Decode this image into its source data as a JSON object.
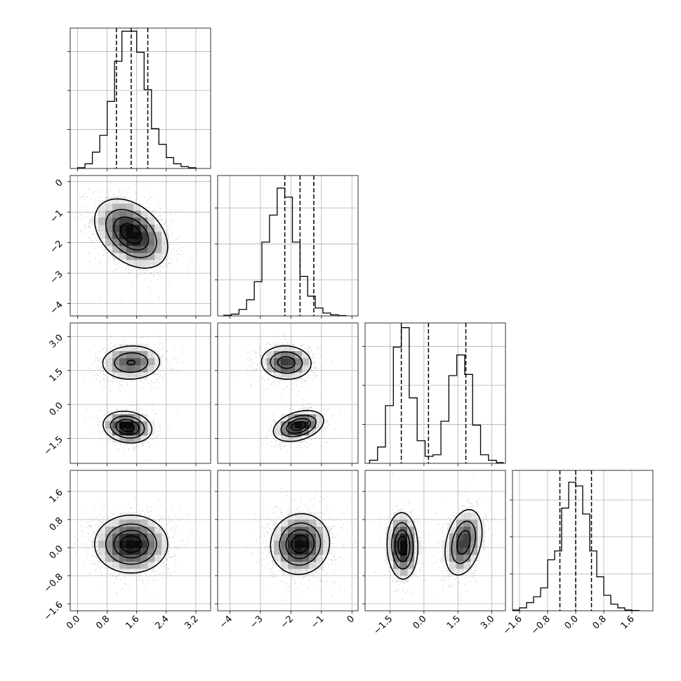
{
  "chart_data": {
    "type": "corner",
    "title": "",
    "n_params": 4,
    "grid": true,
    "params": [
      {
        "xlim": [
          -0.2,
          3.6
        ],
        "ylim": [
          -4.4,
          0.2
        ],
        "ticks": [
          0.0,
          0.8,
          1.6,
          2.4,
          3.2
        ],
        "tick_labels": [
          "0.0",
          "0.8",
          "1.6",
          "2.4",
          "3.2"
        ],
        "ytick_labels": [
          "0",
          "−1",
          "−2",
          "−3",
          "−4"
        ],
        "ylabel_ticks": [
          0,
          -1,
          -2,
          -3,
          -4
        ],
        "quantiles": [
          1.05,
          1.45,
          1.9
        ],
        "hist_ymax": 3.6,
        "hist": {
          "edges": [
            0.0,
            0.2,
            0.4,
            0.6,
            0.8,
            1.0,
            1.2,
            1.4,
            1.6,
            1.8,
            2.0,
            2.2,
            2.4,
            2.6,
            2.8,
            3.0,
            3.2
          ],
          "counts": [
            0.02,
            0.12,
            0.42,
            0.85,
            1.72,
            2.75,
            3.52,
            3.52,
            2.98,
            2.02,
            1.02,
            0.62,
            0.28,
            0.12,
            0.05,
            0.02
          ]
        }
      },
      {
        "xlim": [
          -4.4,
          0.2
        ],
        "ylim": [
          -4.4,
          0.2
        ],
        "ticks": [
          -4,
          -3,
          -2,
          -1,
          0
        ],
        "tick_labels": [
          "−4",
          "−3",
          "−2",
          "−1",
          "0"
        ],
        "quantiles": [
          -2.2,
          -1.7,
          -1.25
        ],
        "hist_ymax": 3.9,
        "hist": {
          "edges": [
            -4.2,
            -3.95,
            -3.7,
            -3.45,
            -3.2,
            -2.95,
            -2.7,
            -2.45,
            -2.2,
            -1.95,
            -1.7,
            -1.45,
            -1.2,
            -0.95,
            -0.7,
            -0.45,
            -0.2
          ],
          "counts": [
            0.02,
            0.05,
            0.18,
            0.45,
            0.95,
            2.05,
            2.8,
            3.55,
            3.3,
            2.05,
            1.1,
            0.55,
            0.22,
            0.08,
            0.03,
            0.01
          ]
        }
      },
      {
        "xlim": [
          -2.6,
          3.6
        ],
        "ylim": [
          -2.6,
          3.6
        ],
        "ticks": [
          -1.5,
          0.0,
          1.5,
          3.0
        ],
        "tick_labels": [
          "−1.5",
          "0.0",
          "1.5",
          "3.0"
        ],
        "quantiles": [
          -1.0,
          0.2,
          1.85
        ],
        "hist_ymax": 3.6,
        "hist": {
          "edges": [
            -2.4,
            -2.05,
            -1.7,
            -1.35,
            -1.0,
            -0.65,
            -0.3,
            0.05,
            0.4,
            0.75,
            1.1,
            1.45,
            1.8,
            2.15,
            2.5,
            2.85,
            3.2,
            3.5
          ],
          "counts": [
            0.08,
            0.42,
            1.48,
            2.98,
            3.48,
            1.68,
            0.58,
            0.18,
            0.22,
            1.08,
            2.25,
            2.78,
            2.28,
            0.98,
            0.22,
            0.08,
            0.02
          ]
        }
      },
      {
        "xlim": [
          -1.8,
          2.2
        ],
        "ylim": [
          -1.8,
          2.2
        ],
        "ticks": [
          -1.6,
          -0.8,
          0.0,
          0.8,
          1.6
        ],
        "tick_labels": [
          "−1.6",
          "−0.8",
          "0.0",
          "0.8",
          "1.6"
        ],
        "quantiles": [
          -0.45,
          0.0,
          0.45
        ],
        "hist_ymax": 3.8,
        "hist": {
          "edges": [
            -1.8,
            -1.6,
            -1.4,
            -1.2,
            -1.0,
            -0.8,
            -0.6,
            -0.4,
            -0.2,
            0.0,
            0.2,
            0.4,
            0.6,
            0.8,
            1.0,
            1.2,
            1.4,
            1.6,
            1.8
          ],
          "counts": [
            0.02,
            0.08,
            0.22,
            0.38,
            0.62,
            1.38,
            1.62,
            2.78,
            3.48,
            3.38,
            2.62,
            1.62,
            0.92,
            0.42,
            0.18,
            0.08,
            0.02,
            0.01
          ]
        }
      }
    ],
    "pairs": [
      {
        "row": 1,
        "col": 0,
        "clusters": [
          {
            "mx": 1.45,
            "my": -1.7,
            "sx": 0.48,
            "sy": 0.55,
            "rho": -0.38,
            "w": 1.0
          }
        ]
      },
      {
        "row": 2,
        "col": 0,
        "clusters": [
          {
            "mx": 1.45,
            "my": 1.85,
            "sx": 0.42,
            "sy": 0.4,
            "rho": 0.05,
            "w": 0.5
          },
          {
            "mx": 1.35,
            "my": -1.0,
            "sx": 0.32,
            "sy": 0.34,
            "rho": -0.15,
            "w": 0.5
          }
        ]
      },
      {
        "row": 2,
        "col": 1,
        "clusters": [
          {
            "mx": -2.15,
            "my": 1.85,
            "sx": 0.42,
            "sy": 0.38,
            "rho": -0.05,
            "w": 0.5
          },
          {
            "mx": -1.75,
            "my": -0.95,
            "sx": 0.4,
            "sy": 0.33,
            "rho": 0.35,
            "w": 0.5
          }
        ]
      },
      {
        "row": 3,
        "col": 0,
        "clusters": [
          {
            "mx": 1.45,
            "my": 0.1,
            "sx": 0.48,
            "sy": 0.4,
            "rho": 0.0,
            "w": 1.0
          }
        ]
      },
      {
        "row": 3,
        "col": 1,
        "clusters": [
          {
            "mx": -1.7,
            "my": 0.1,
            "sx": 0.47,
            "sy": 0.42,
            "rho": 0.05,
            "w": 1.0
          }
        ]
      },
      {
        "row": 3,
        "col": 2,
        "clusters": [
          {
            "mx": -0.95,
            "my": 0.05,
            "sx": 0.33,
            "sy": 0.46,
            "rho": -0.05,
            "w": 0.5
          },
          {
            "mx": 1.75,
            "my": 0.15,
            "sx": 0.42,
            "sy": 0.48,
            "rho": 0.3,
            "w": 0.5
          }
        ]
      }
    ],
    "contour_levels": [
      0.118,
      0.393,
      0.675,
      0.865
    ]
  }
}
